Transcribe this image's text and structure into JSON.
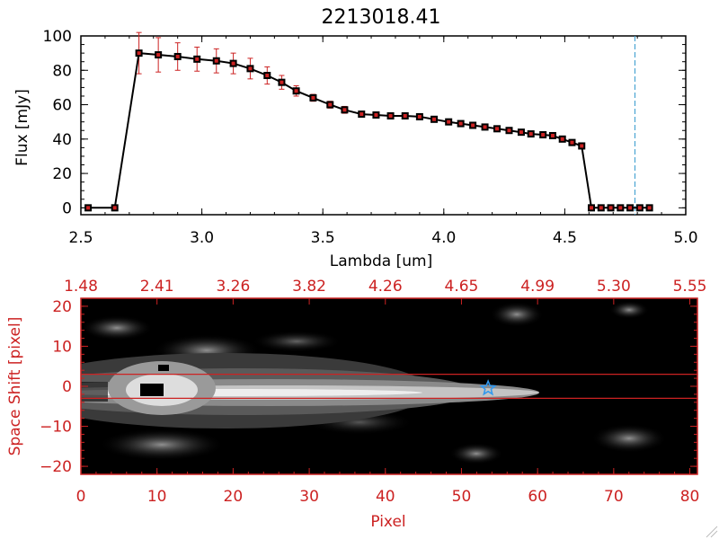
{
  "chart_data": [
    {
      "type": "line",
      "title": "2213018.41",
      "xlabel": "Lambda [um]",
      "ylabel": "Flux [mJy]",
      "xlim": [
        2.5,
        5.0
      ],
      "ylim": [
        -4,
        100
      ],
      "x_ticks": [
        2.5,
        3.0,
        3.5,
        4.0,
        4.5,
        5.0
      ],
      "x_tick_labels": [
        "2.5",
        "3.0",
        "3.5",
        "4.0",
        "4.5",
        "5.0"
      ],
      "y_ticks": [
        0,
        20,
        40,
        60,
        80,
        100
      ],
      "y_tick_labels": [
        "0",
        "20",
        "40",
        "60",
        "80",
        "100"
      ],
      "vline_x": 4.79,
      "series": [
        {
          "x": [
            2.53,
            2.64,
            2.74,
            2.82,
            2.9,
            2.98,
            3.06,
            3.13,
            3.2,
            3.27,
            3.33,
            3.39,
            3.46,
            3.53,
            3.59,
            3.66,
            3.72,
            3.78,
            3.84,
            3.9,
            3.96,
            4.02,
            4.07,
            4.12,
            4.17,
            4.22,
            4.27,
            4.32,
            4.36,
            4.41,
            4.45,
            4.49,
            4.53,
            4.57,
            4.61,
            4.65,
            4.69,
            4.73,
            4.77,
            4.81,
            4.85
          ],
          "y": [
            0,
            0,
            90,
            89,
            88,
            86.5,
            85.5,
            84,
            81,
            77,
            73,
            68,
            64,
            60,
            57,
            54.5,
            54,
            53.5,
            53.5,
            53,
            51.5,
            50,
            49,
            48,
            47,
            46,
            45,
            44,
            43,
            42.5,
            42,
            40,
            38,
            36,
            0,
            0,
            0,
            0,
            0,
            0,
            0
          ],
          "err": [
            0,
            0,
            12,
            10,
            8,
            7,
            7,
            6,
            6,
            5,
            4,
            3,
            2,
            2,
            2,
            1.5,
            1,
            1,
            1,
            1,
            1,
            1,
            1,
            1,
            1,
            1,
            1,
            1,
            1,
            1,
            1,
            1,
            1,
            1,
            0,
            0,
            0,
            0,
            0,
            0,
            0
          ],
          "line_color": "#000000",
          "marker_color": "#cc2222",
          "error_color": "#cc2222"
        }
      ],
      "vline_color": "#3399cc"
    },
    {
      "type": "heatmap",
      "xlabel": "Pixel",
      "ylabel": "Space Shift [pixel]",
      "xlim": [
        0,
        81
      ],
      "ylim": [
        -22,
        22
      ],
      "x_ticks": [
        0,
        10,
        20,
        30,
        40,
        50,
        60,
        70,
        80
      ],
      "x_tick_labels": [
        "0",
        "10",
        "20",
        "30",
        "40",
        "50",
        "60",
        "70",
        "80"
      ],
      "y_ticks": [
        -20,
        -10,
        0,
        10,
        20
      ],
      "y_tick_labels": [
        "−20",
        "−10",
        "0",
        "10",
        "20"
      ],
      "top_ticks": [
        0,
        10,
        20,
        30,
        40,
        50,
        60,
        70,
        80
      ],
      "top_tick_labels": [
        "1.48",
        "2.41",
        "3.26",
        "3.82",
        "4.26",
        "4.65",
        "4.99",
        "5.30",
        "5.55"
      ],
      "extraction_box_y": [
        -3,
        3
      ],
      "star_marker": {
        "x": 53.5,
        "y": -0.5,
        "color": "#3399ee"
      },
      "axis_color": "#cc2222"
    }
  ]
}
